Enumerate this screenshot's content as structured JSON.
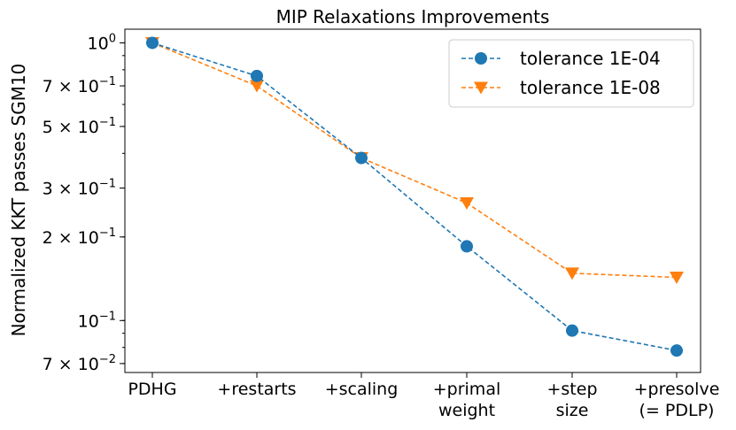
{
  "chart_data": {
    "type": "line",
    "title": "MIP Relaxations Improvements",
    "xlabel": "",
    "ylabel": "Normalized KKT passes SGM10",
    "yscale": "log",
    "ylim": [
      0.065,
      1.12
    ],
    "categories": [
      [
        "PDHG"
      ],
      [
        "+restarts"
      ],
      [
        "+scaling"
      ],
      [
        "+primal",
        "weight"
      ],
      [
        "+step",
        "size"
      ],
      [
        "+presolve",
        "(= PDLP)"
      ]
    ],
    "yticks": [
      {
        "value": 1.0,
        "mant": "10",
        "exp": "0"
      },
      {
        "value": 0.7,
        "mant": "7 × 10",
        "exp": "−1"
      },
      {
        "value": 0.5,
        "mant": "5 × 10",
        "exp": "−1"
      },
      {
        "value": 0.3,
        "mant": "3 × 10",
        "exp": "−1"
      },
      {
        "value": 0.2,
        "mant": "2 × 10",
        "exp": "−1"
      },
      {
        "value": 0.1,
        "mant": "10",
        "exp": "−1"
      },
      {
        "value": 0.07,
        "mant": "7 × 10",
        "exp": "−2"
      }
    ],
    "series": [
      {
        "name": "tolerance 1E-04",
        "color": "#1f77b4",
        "marker": "circle",
        "values": [
          1.0,
          0.76,
          0.385,
          0.185,
          0.092,
          0.078
        ]
      },
      {
        "name": "tolerance 1E-08",
        "color": "#ff7f0e",
        "marker": "triangle-down",
        "values": [
          1.0,
          0.7,
          0.385,
          0.265,
          0.148,
          0.143
        ]
      }
    ],
    "legend_position": "top-right",
    "grid": false
  }
}
